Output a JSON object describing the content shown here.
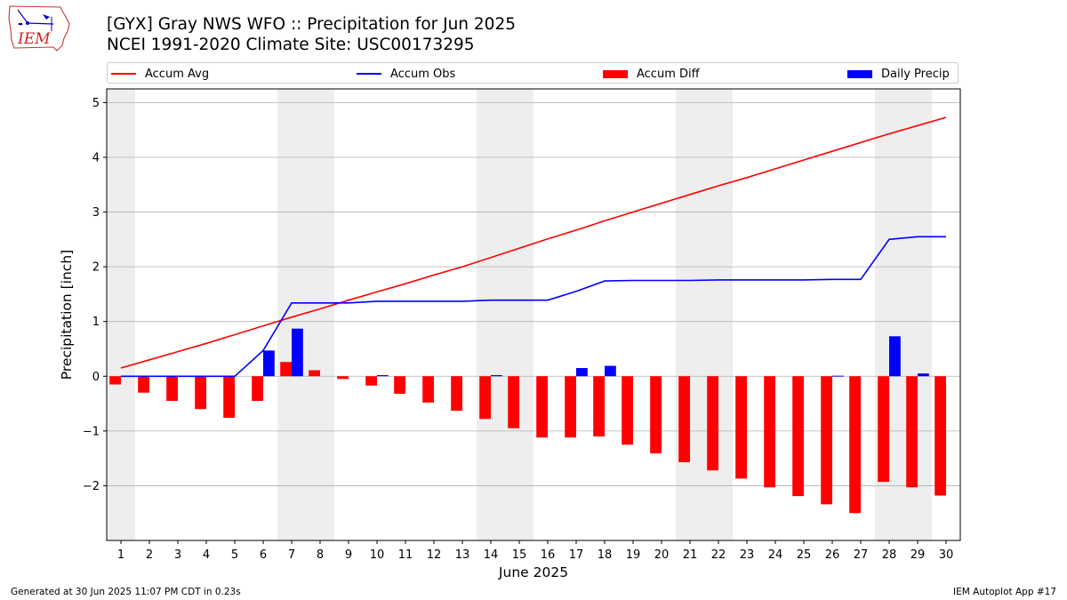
{
  "header": {
    "title_line1": "[GYX] Gray NWS WFO :: Precipitation for Jun 2025",
    "title_line2": "NCEI 1991-2020 Climate Site: USC00173295"
  },
  "logo": {
    "text": "IEM",
    "icon": "iowa-state-outline-icon"
  },
  "footer": {
    "left": "Generated at 30 Jun 2025 11:07 PM CDT in 0.23s",
    "right": "IEM Autoplot App #17"
  },
  "chart_data": {
    "type": "bar",
    "xlabel": "June 2025",
    "ylabel": "Precipitation [inch]",
    "ylim": [
      -3.0,
      5.25
    ],
    "xlim": [
      0.5,
      30.5
    ],
    "yticks": [
      -2,
      -1,
      0,
      1,
      2,
      3,
      4,
      5
    ],
    "ytick_labels": [
      "−2",
      "−1",
      "0",
      "1",
      "2",
      "3",
      "4",
      "5"
    ],
    "days": [
      1,
      2,
      3,
      4,
      5,
      6,
      7,
      8,
      9,
      10,
      11,
      12,
      13,
      14,
      15,
      16,
      17,
      18,
      19,
      20,
      21,
      22,
      23,
      24,
      25,
      26,
      27,
      28,
      29,
      30
    ],
    "xtick_labels": [
      "1",
      "2",
      "3",
      "4",
      "5",
      "6",
      "7",
      "8",
      "9",
      "10",
      "11",
      "12",
      "13",
      "14",
      "15",
      "16",
      "17",
      "18",
      "19",
      "20",
      "21",
      "22",
      "23",
      "24",
      "25",
      "26",
      "27",
      "28",
      "29",
      "30"
    ],
    "weekend_days": [
      1,
      7,
      8,
      14,
      15,
      21,
      22,
      28,
      29
    ],
    "grid": "horizontal",
    "legend_position": "top",
    "series": [
      {
        "name": "Accum Avg",
        "kind": "line",
        "color": "#ff0000",
        "values": [
          0.15,
          0.3,
          0.45,
          0.6,
          0.76,
          0.92,
          1.08,
          1.23,
          1.39,
          1.54,
          1.69,
          1.85,
          2.0,
          2.17,
          2.34,
          2.51,
          2.67,
          2.84,
          3.0,
          3.16,
          3.32,
          3.48,
          3.63,
          3.79,
          3.95,
          4.11,
          4.27,
          4.43,
          4.58,
          4.73
        ]
      },
      {
        "name": "Accum Obs",
        "kind": "line",
        "color": "#0000ff",
        "values": [
          0,
          0,
          0,
          0,
          0,
          0.47,
          1.34,
          1.34,
          1.34,
          1.37,
          1.37,
          1.37,
          1.37,
          1.39,
          1.39,
          1.39,
          1.55,
          1.74,
          1.75,
          1.75,
          1.75,
          1.76,
          1.76,
          1.76,
          1.76,
          1.77,
          1.77,
          2.5,
          2.55,
          2.55
        ]
      },
      {
        "name": "Accum Diff",
        "kind": "bar",
        "color": "#ff0000",
        "values": [
          -0.15,
          -0.3,
          -0.45,
          -0.6,
          -0.76,
          -0.45,
          0.26,
          0.11,
          -0.05,
          -0.17,
          -0.32,
          -0.48,
          -0.63,
          -0.78,
          -0.95,
          -1.12,
          -1.12,
          -1.1,
          -1.25,
          -1.41,
          -1.57,
          -1.72,
          -1.87,
          -2.03,
          -2.19,
          -2.34,
          -2.5,
          -1.93,
          -2.03,
          -2.18
        ]
      },
      {
        "name": "Daily Precip",
        "kind": "bar",
        "color": "#0000ff",
        "values": [
          0,
          0,
          0,
          0,
          0,
          0.47,
          0.87,
          0,
          0,
          0.02,
          0,
          0,
          0,
          0.02,
          0,
          0,
          0.15,
          0.19,
          0,
          0,
          0,
          0,
          0,
          0,
          0,
          0.01,
          0,
          0.73,
          0.05,
          0
        ]
      }
    ]
  }
}
